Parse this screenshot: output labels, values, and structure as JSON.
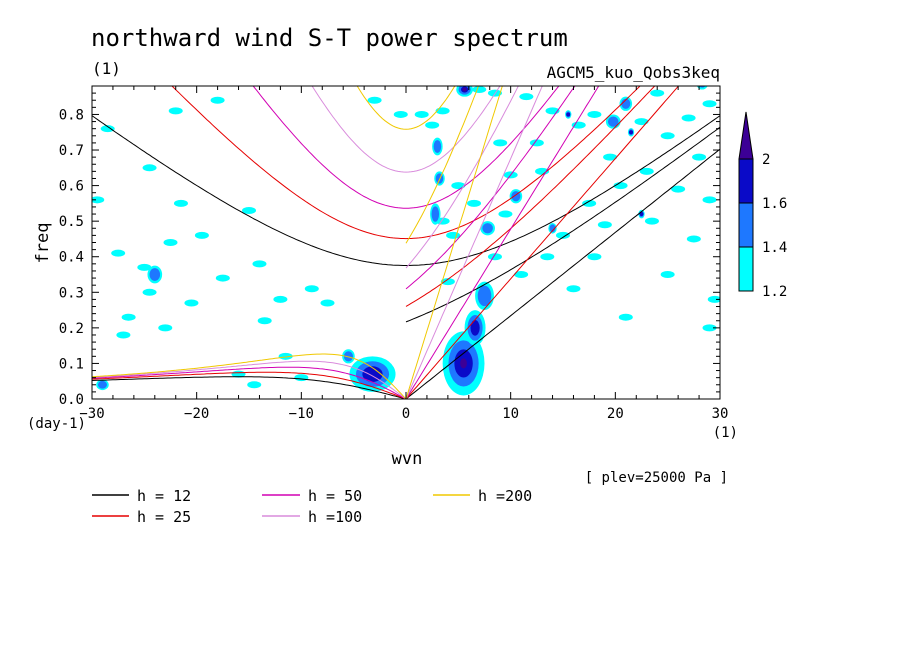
{
  "chart_data": {
    "type": "contour",
    "title": "northward wind S-T power spectrum",
    "unit_label": "(1)",
    "run_label": "AGCM5_kuo_Qobs3keq",
    "xlabel": "wvn",
    "ylabel": "freq",
    "x_unit": "(1)",
    "y_unit": "(day-1)",
    "level_note": "[ plev=25000 Pa ]",
    "xlim": [
      -30,
      30
    ],
    "ylim": [
      0,
      0.88
    ],
    "x_ticks": [
      -30,
      -20,
      -10,
      0,
      10,
      20,
      30
    ],
    "x_tick_labels": [
      "−30",
      "−20",
      "−10",
      "0",
      "10",
      "20",
      "30"
    ],
    "y_ticks": [
      0.0,
      0.1,
      0.2,
      0.3,
      0.4,
      0.5,
      0.6,
      0.7,
      0.8
    ],
    "y_tick_labels": [
      "0.0",
      "0.1",
      "0.2",
      "0.3",
      "0.4",
      "0.5",
      "0.6",
      "0.7",
      "0.8"
    ],
    "colorbar": {
      "levels": [
        1.2,
        1.4,
        1.6,
        2
      ],
      "labels": [
        "1.2",
        "1.4",
        "1.6",
        "2"
      ],
      "colors": [
        "#00ffff",
        "#1e78ff",
        "#0a0ac8",
        "#3c0096"
      ]
    },
    "dispersion_curves": [
      {
        "name": "h = 12",
        "h": 12,
        "color": "#000000"
      },
      {
        "name": "h = 25",
        "h": 25,
        "color": "#e60000"
      },
      {
        "name": "h = 50",
        "h": 50,
        "color": "#d200b4"
      },
      {
        "name": "h =100",
        "h": 100,
        "color": "#d98cdc"
      },
      {
        "name": "h =200",
        "h": 200,
        "color": "#f0c800"
      }
    ],
    "power_blobs": [
      {
        "k": 5.5,
        "f": 0.1,
        "rk": 2.0,
        "rf": 0.09,
        "level": 4
      },
      {
        "k": 6.6,
        "f": 0.2,
        "rk": 1.0,
        "rf": 0.05,
        "level": 3
      },
      {
        "k": 7.5,
        "f": 0.29,
        "rk": 0.9,
        "rf": 0.04,
        "level": 2
      },
      {
        "k": -3.2,
        "f": 0.07,
        "rk": 2.2,
        "rf": 0.05,
        "level": 3
      },
      {
        "k": 5.6,
        "f": 0.87,
        "rk": 0.8,
        "rf": 0.02,
        "level": 4
      },
      {
        "k": 3.0,
        "f": 0.71,
        "rk": 0.5,
        "rf": 0.025,
        "level": 2
      },
      {
        "k": 2.8,
        "f": 0.52,
        "rk": 0.5,
        "rf": 0.03,
        "level": 2
      },
      {
        "k": 7.8,
        "f": 0.48,
        "rk": 0.7,
        "rf": 0.02,
        "level": 2
      },
      {
        "k": 10.5,
        "f": 0.57,
        "rk": 0.6,
        "rf": 0.02,
        "level": 2
      },
      {
        "k": 19.8,
        "f": 0.78,
        "rk": 0.7,
        "rf": 0.02,
        "level": 2
      },
      {
        "k": 21.0,
        "f": 0.83,
        "rk": 0.6,
        "rf": 0.02,
        "level": 2
      },
      {
        "k": 28.3,
        "f": 0.89,
        "rk": 0.6,
        "rf": 0.02,
        "level": 3
      },
      {
        "k": -29.0,
        "f": 0.04,
        "rk": 0.6,
        "rf": 0.015,
        "level": 2
      },
      {
        "k": -24.0,
        "f": 0.35,
        "rk": 0.7,
        "rf": 0.025,
        "level": 2
      },
      {
        "k": -5.5,
        "f": 0.12,
        "rk": 0.6,
        "rf": 0.02,
        "level": 2
      },
      {
        "k": 3.2,
        "f": 0.62,
        "rk": 0.5,
        "rf": 0.02,
        "level": 2
      },
      {
        "k": 14.0,
        "f": 0.48,
        "rk": 0.4,
        "rf": 0.015,
        "level": 2
      },
      {
        "k": 21.5,
        "f": 0.75,
        "rk": 0.3,
        "rf": 0.012,
        "level": 3
      },
      {
        "k": 22.5,
        "f": 0.52,
        "rk": 0.3,
        "rf": 0.012,
        "level": 3
      },
      {
        "k": 15.5,
        "f": 0.8,
        "rk": 0.3,
        "rf": 0.012,
        "level": 3
      }
    ],
    "cyan_patches": [
      [
        -29.5,
        0.56
      ],
      [
        -27.5,
        0.41
      ],
      [
        -25.0,
        0.37
      ],
      [
        -24.5,
        0.3
      ],
      [
        -26.5,
        0.23
      ],
      [
        -22.5,
        0.44
      ],
      [
        -20.5,
        0.27
      ],
      [
        -17.5,
        0.34
      ],
      [
        -13.5,
        0.22
      ],
      [
        -14.0,
        0.38
      ],
      [
        -15.0,
        0.53
      ],
      [
        -19.5,
        0.46
      ],
      [
        -18.0,
        0.84
      ],
      [
        -22.0,
        0.81
      ],
      [
        -24.5,
        0.65
      ],
      [
        -28.5,
        0.76
      ],
      [
        -27.0,
        0.18
      ],
      [
        -23.0,
        0.2
      ],
      [
        -21.5,
        0.55
      ],
      [
        -12.0,
        0.28
      ],
      [
        -11.5,
        0.12
      ],
      [
        -9.0,
        0.31
      ],
      [
        -7.5,
        0.27
      ],
      [
        -16.0,
        0.07
      ],
      [
        -14.5,
        0.04
      ],
      [
        -10.0,
        0.06
      ],
      [
        -3.0,
        0.84
      ],
      [
        -0.5,
        0.8
      ],
      [
        1.5,
        0.8
      ],
      [
        2.5,
        0.77
      ],
      [
        3.5,
        0.81
      ],
      [
        4.5,
        0.46
      ],
      [
        4.0,
        0.33
      ],
      [
        3.5,
        0.5
      ],
      [
        5.0,
        0.6
      ],
      [
        6.5,
        0.55
      ],
      [
        8.5,
        0.4
      ],
      [
        9.5,
        0.52
      ],
      [
        11.0,
        0.35
      ],
      [
        13.5,
        0.4
      ],
      [
        16.0,
        0.31
      ],
      [
        18.0,
        0.4
      ],
      [
        15.0,
        0.46
      ],
      [
        17.5,
        0.55
      ],
      [
        20.5,
        0.6
      ],
      [
        23.0,
        0.64
      ],
      [
        26.0,
        0.59
      ],
      [
        29.0,
        0.56
      ],
      [
        28.0,
        0.68
      ],
      [
        25.0,
        0.74
      ],
      [
        22.5,
        0.78
      ],
      [
        27.0,
        0.79
      ],
      [
        29.0,
        0.83
      ],
      [
        16.5,
        0.77
      ],
      [
        12.5,
        0.72
      ],
      [
        10.0,
        0.63
      ],
      [
        13.0,
        0.64
      ],
      [
        19.5,
        0.68
      ],
      [
        18.0,
        0.8
      ],
      [
        14.0,
        0.81
      ],
      [
        24.0,
        0.86
      ],
      [
        11.5,
        0.85
      ],
      [
        9.0,
        0.72
      ],
      [
        29.5,
        0.28
      ],
      [
        29.0,
        0.2
      ],
      [
        25.0,
        0.35
      ],
      [
        21.0,
        0.23
      ],
      [
        27.5,
        0.45
      ],
      [
        23.5,
        0.5
      ],
      [
        19.0,
        0.49
      ],
      [
        7.0,
        0.87
      ],
      [
        8.5,
        0.86
      ]
    ]
  },
  "legend": {
    "items": [
      {
        "label": "h = 12",
        "color": "#000000"
      },
      {
        "label": "h = 25",
        "color": "#e60000"
      },
      {
        "label": "h = 50",
        "color": "#d200b4"
      },
      {
        "label": "h =100",
        "color": "#d98cdc"
      },
      {
        "label": "h =200",
        "color": "#f0c800"
      }
    ]
  }
}
